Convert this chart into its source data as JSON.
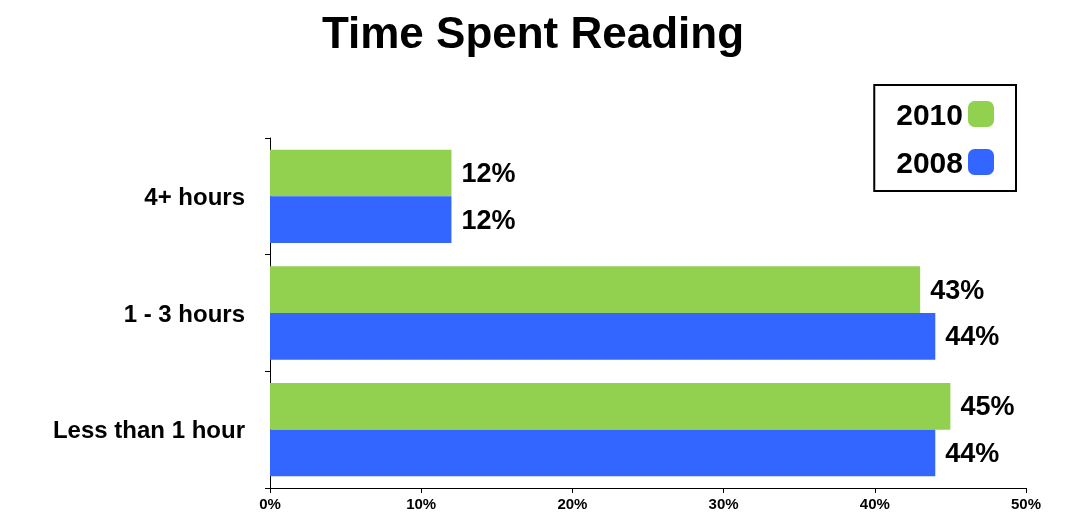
{
  "chart_data": {
    "type": "bar",
    "orientation": "horizontal",
    "title": "Time Spent Reading",
    "categories": [
      "4+ hours",
      "1 - 3 hours",
      "Less than 1 hour"
    ],
    "series": [
      {
        "name": "2010",
        "color": "#92d050",
        "values": [
          12,
          43,
          45
        ],
        "value_labels": [
          "12%",
          "43%",
          "45%"
        ]
      },
      {
        "name": "2008",
        "color": "#3366ff",
        "values": [
          12,
          44,
          44
        ],
        "value_labels": [
          "12%",
          "44%",
          "44%"
        ]
      }
    ],
    "xlim": [
      0,
      50
    ],
    "xticks": [
      {
        "value": 0,
        "label": "0%"
      },
      {
        "value": 10,
        "label": "10%"
      },
      {
        "value": 20,
        "label": "20%"
      },
      {
        "value": 30,
        "label": "30%"
      },
      {
        "value": 40,
        "label": "40%"
      },
      {
        "value": 50,
        "label": "50%"
      }
    ],
    "grid": false,
    "legend": "top right"
  }
}
